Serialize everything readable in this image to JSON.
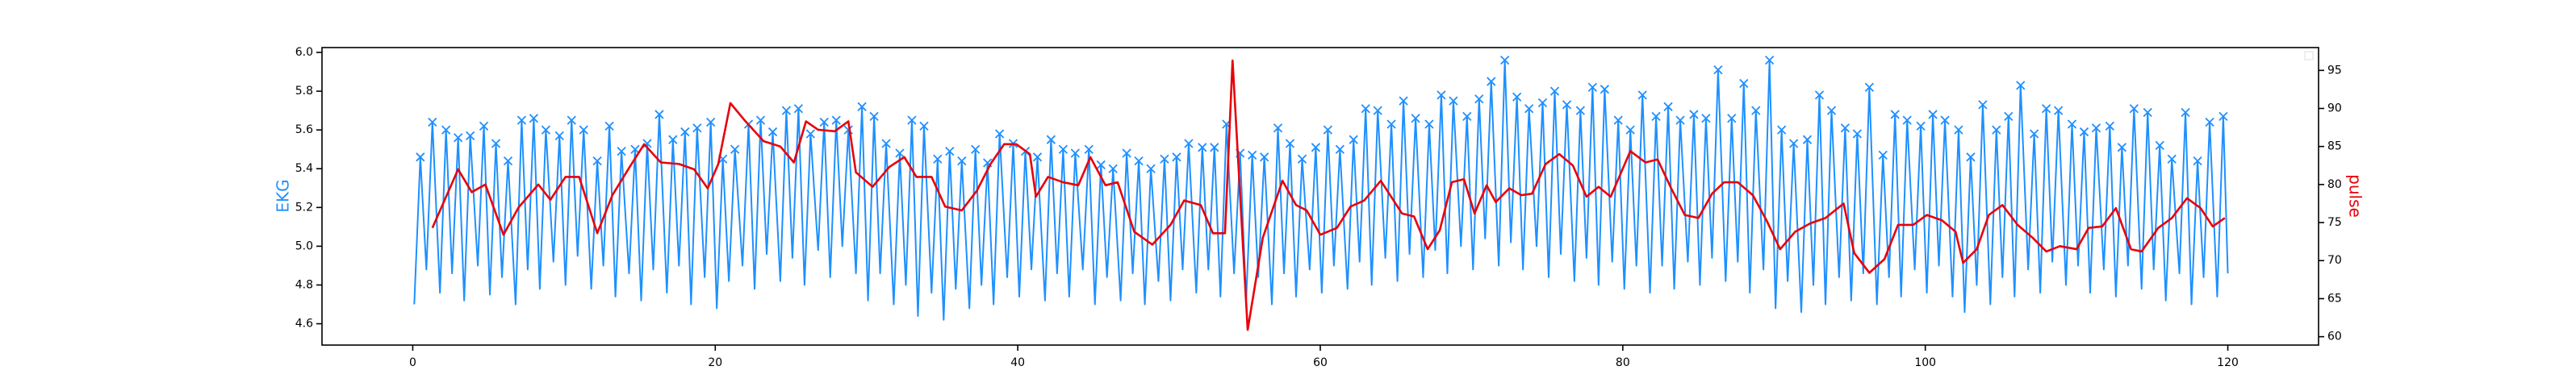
{
  "chart_data": {
    "type": "line",
    "ylabel": "EKG",
    "y2label": "pulse",
    "xlim": [
      -6,
      126
    ],
    "xticks": [
      0,
      20,
      40,
      60,
      80,
      100,
      120
    ],
    "ylim": [
      4.49,
      6.025
    ],
    "yticks": [
      4.6,
      4.8,
      {
        "value": 5.0,
        "label": "5.0"
      },
      5.2,
      5.4,
      5.6,
      5.8,
      {
        "value": 6.0,
        "label": "6.0"
      }
    ],
    "y2lim": [
      58.9,
      98
    ],
    "y2ticks": [
      60,
      65,
      70,
      75,
      80,
      85,
      90,
      95
    ],
    "series": [
      {
        "type": "line",
        "color": "#1e90ff",
        "x": [
          0.1,
          0.5,
          0.9,
          1.3,
          1.8,
          2.2,
          2.6,
          3,
          3.4,
          3.8,
          4.3,
          4.7,
          5.1,
          5.5,
          5.9,
          6.3,
          6.8,
          7.2,
          7.6,
          8,
          8.4,
          8.8,
          9.3,
          9.7,
          10.1,
          10.5,
          10.9,
          11.3,
          11.8,
          12.2,
          12.6,
          13,
          13.4,
          13.8,
          14.3,
          14.7,
          15.1,
          15.5,
          15.9,
          16.3,
          16.8,
          17.2,
          17.6,
          18,
          18.4,
          18.8,
          19.3,
          19.7,
          20.1,
          20.5,
          20.9,
          21.3,
          21.8,
          22.2,
          22.6,
          23,
          23.4,
          23.8,
          24.3,
          24.7,
          25.1,
          25.5,
          25.9,
          26.3,
          26.8,
          27.2,
          27.6,
          28,
          28.4,
          28.8,
          29.3,
          29.7,
          30.1,
          30.5,
          30.9,
          31.3,
          31.8,
          32.2,
          32.6,
          33,
          33.4,
          33.8,
          34.3,
          34.7,
          35.1,
          35.5,
          35.9,
          36.3,
          36.8,
          37.2,
          37.6,
          38,
          38.4,
          38.8,
          39.3,
          39.7,
          40.1,
          40.5,
          40.9,
          41.3,
          41.8,
          42.2,
          42.6,
          43,
          43.4,
          43.8,
          44.3,
          44.7,
          45.1,
          45.5,
          45.9,
          46.3,
          46.8,
          47.2,
          47.6,
          48,
          48.4,
          48.8,
          49.3,
          49.7,
          50.1,
          50.5,
          50.9,
          51.3,
          51.8,
          52.2,
          52.6,
          53,
          53.4,
          53.8,
          54.3,
          54.7,
          55.1,
          55.5,
          55.9,
          56.3,
          56.8,
          57.2,
          57.6,
          58,
          58.4,
          58.8,
          59.3,
          59.7,
          60.1,
          60.5,
          60.9,
          61.3,
          61.8,
          62.2,
          62.6,
          63,
          63.4,
          63.8,
          64.3,
          64.7,
          65.1,
          65.5,
          65.9,
          66.3,
          66.8,
          67.2,
          67.6,
          68,
          68.4,
          68.8,
          69.3,
          69.7,
          70.1,
          70.5,
          70.9,
          71.3,
          71.8,
          72.2,
          72.6,
          73,
          73.4,
          73.8,
          74.3,
          74.7,
          75.1,
          75.5,
          75.9,
          76.3,
          76.8,
          77.2,
          77.6,
          78,
          78.4,
          78.8,
          79.3,
          79.7,
          80.1,
          80.5,
          80.9,
          81.3,
          81.8,
          82.2,
          82.6,
          83,
          83.4,
          83.8,
          84.3,
          84.7,
          85.1,
          85.5,
          85.9,
          86.3,
          86.8,
          87.2,
          87.6,
          88,
          88.4,
          88.8,
          89.3,
          89.7,
          90.1,
          90.5,
          90.9,
          91.3,
          91.8,
          92.2,
          92.6,
          93,
          93.4,
          93.8,
          94.3,
          94.7,
          95.1,
          95.5,
          95.9,
          96.3,
          96.8,
          97.2,
          97.6,
          98,
          98.4,
          98.8,
          99.3,
          99.7,
          100.1,
          100.5,
          100.9,
          101.3,
          101.8,
          102.2,
          102.6,
          103,
          103.4,
          103.8,
          104.3,
          104.7,
          105.1,
          105.5,
          105.9,
          106.3,
          106.8,
          107.2,
          107.6,
          108,
          108.4,
          108.8,
          109.3,
          109.7,
          110.1,
          110.5,
          110.9,
          111.3,
          111.8,
          112.2,
          112.6,
          113,
          113.4,
          113.8,
          114.3,
          114.7,
          115.1,
          115.5,
          115.9,
          116.3,
          116.8,
          117.2,
          117.6,
          118,
          118.4,
          118.8,
          119.3,
          119.7,
          120
        ],
        "values": [
          4.7,
          5.46,
          4.88,
          5.64,
          4.76,
          5.6,
          4.86,
          5.56,
          4.72,
          5.57,
          4.9,
          5.62,
          4.75,
          5.53,
          4.84,
          5.44,
          4.7,
          5.65,
          4.88,
          5.66,
          4.78,
          5.6,
          4.92,
          5.57,
          4.8,
          5.65,
          4.95,
          5.6,
          4.78,
          5.44,
          4.9,
          5.62,
          4.74,
          5.49,
          4.86,
          5.5,
          4.72,
          5.53,
          4.88,
          5.68,
          4.76,
          5.55,
          4.9,
          5.59,
          4.7,
          5.61,
          4.84,
          5.64,
          4.68,
          5.45,
          4.82,
          5.5,
          4.9,
          5.63,
          4.78,
          5.65,
          4.96,
          5.59,
          4.82,
          5.7,
          4.94,
          5.71,
          4.8,
          5.58,
          4.98,
          5.64,
          4.84,
          5.65,
          5.0,
          5.6,
          4.86,
          5.72,
          4.72,
          5.67,
          4.86,
          5.53,
          4.7,
          5.48,
          4.8,
          5.65,
          4.64,
          5.62,
          4.76,
          5.45,
          4.62,
          5.49,
          4.78,
          5.44,
          4.68,
          5.5,
          4.8,
          5.43,
          4.7,
          5.58,
          4.84,
          5.53,
          4.74,
          5.49,
          4.88,
          5.46,
          4.72,
          5.55,
          4.86,
          5.5,
          4.74,
          5.48,
          4.88,
          5.5,
          4.7,
          5.42,
          4.84,
          5.4,
          4.72,
          5.48,
          4.86,
          5.44,
          4.7,
          5.4,
          4.82,
          5.45,
          4.72,
          5.46,
          4.88,
          5.53,
          4.76,
          5.51,
          4.88,
          5.51,
          4.74,
          5.63,
          4.86,
          5.48,
          4.72,
          5.47,
          4.84,
          5.46,
          4.7,
          5.61,
          4.86,
          5.53,
          4.74,
          5.45,
          4.88,
          5.51,
          4.76,
          5.6,
          4.9,
          5.5,
          4.78,
          5.55,
          4.92,
          5.71,
          4.8,
          5.7,
          4.94,
          5.63,
          4.82,
          5.75,
          4.96,
          5.66,
          4.84,
          5.63,
          4.98,
          5.78,
          4.86,
          5.75,
          5.0,
          5.67,
          4.88,
          5.76,
          5.04,
          5.85,
          4.9,
          5.96,
          5.02,
          5.77,
          4.88,
          5.71,
          5.0,
          5.74,
          4.84,
          5.8,
          4.96,
          5.73,
          4.82,
          5.7,
          4.94,
          5.82,
          4.8,
          5.81,
          4.92,
          5.65,
          4.78,
          5.6,
          4.9,
          5.78,
          4.76,
          5.67,
          4.9,
          5.72,
          4.78,
          5.65,
          4.92,
          5.68,
          4.8,
          5.66,
          4.94,
          5.91,
          4.82,
          5.66,
          4.92,
          5.84,
          4.76,
          5.7,
          4.88,
          5.96,
          4.68,
          5.6,
          4.82,
          5.53,
          4.66,
          5.55,
          4.8,
          5.78,
          4.7,
          5.7,
          4.84,
          5.61,
          4.72,
          5.58,
          4.86,
          5.82,
          4.7,
          5.47,
          4.84,
          5.68,
          4.74,
          5.65,
          4.88,
          5.62,
          4.76,
          5.68,
          4.9,
          5.65,
          4.74,
          5.6,
          4.66,
          5.46,
          4.8,
          5.73,
          4.7,
          5.6,
          4.84,
          5.67,
          4.74,
          5.83,
          4.88,
          5.58,
          4.76,
          5.71,
          4.92,
          5.7,
          4.8,
          5.63,
          4.9,
          5.59,
          4.76,
          5.61,
          4.88,
          5.62,
          4.74,
          5.51,
          4.9,
          5.71,
          4.78,
          5.69,
          4.88,
          5.52,
          4.72,
          5.45,
          4.86,
          5.69,
          4.7,
          5.44,
          4.84,
          5.64,
          4.74,
          5.67,
          4.86
        ]
      },
      {
        "type": "scatter",
        "marker": "x",
        "color": "#1e90ff",
        "x": [
          0.5,
          1.3,
          2.2,
          3,
          3.8,
          4.7,
          5.5,
          6.3,
          7.2,
          8,
          8.8,
          9.7,
          10.5,
          11.3,
          12.2,
          13,
          13.8,
          14.7,
          15.5,
          16.3,
          17.2,
          18,
          18.8,
          19.7,
          20.5,
          21.3,
          22.2,
          23,
          23.8,
          24.7,
          25.5,
          26.3,
          27.2,
          28,
          28.8,
          29.7,
          30.5,
          31.3,
          32.2,
          33,
          33.8,
          34.7,
          35.5,
          36.3,
          37.2,
          38,
          38.8,
          39.7,
          40.5,
          41.3,
          42.2,
          43,
          43.8,
          44.7,
          45.5,
          46.3,
          47.2,
          48,
          48.8,
          49.7,
          50.5,
          51.3,
          52.2,
          53,
          53.8,
          54.7,
          55.5,
          56.3,
          57.2,
          58,
          58.8,
          59.7,
          60.5,
          61.3,
          62.2,
          63,
          63.8,
          64.7,
          65.5,
          66.3,
          67.2,
          68,
          68.8,
          69.7,
          70.5,
          71.3,
          72.2,
          73,
          73.8,
          74.7,
          75.5,
          76.3,
          77.2,
          78,
          78.8,
          79.7,
          80.5,
          81.3,
          82.2,
          83,
          83.8,
          84.7,
          85.5,
          86.3,
          87.2,
          88,
          88.8,
          89.7,
          90.5,
          91.3,
          92.2,
          93,
          93.8,
          94.7,
          95.5,
          96.3,
          97.2,
          98,
          98.8,
          99.7,
          100.5,
          101.3,
          102.2,
          103,
          103.8,
          104.7,
          105.5,
          106.3,
          107.2,
          108,
          108.8,
          109.7,
          110.5,
          111.3,
          112.2,
          113,
          113.8,
          114.7,
          115.5,
          116.3,
          117.2,
          118,
          118.8,
          119.7
        ],
        "values": [
          5.46,
          5.64,
          5.6,
          5.56,
          5.57,
          5.62,
          5.53,
          5.44,
          5.65,
          5.66,
          5.6,
          5.57,
          5.65,
          5.6,
          5.44,
          5.62,
          5.49,
          5.5,
          5.53,
          5.68,
          5.55,
          5.59,
          5.61,
          5.64,
          5.45,
          5.5,
          5.63,
          5.65,
          5.59,
          5.7,
          5.71,
          5.58,
          5.64,
          5.65,
          5.6,
          5.72,
          5.67,
          5.53,
          5.48,
          5.65,
          5.62,
          5.45,
          5.49,
          5.44,
          5.5,
          5.43,
          5.58,
          5.53,
          5.49,
          5.46,
          5.55,
          5.5,
          5.48,
          5.5,
          5.42,
          5.4,
          5.48,
          5.44,
          5.4,
          5.45,
          5.46,
          5.53,
          5.51,
          5.51,
          5.63,
          5.48,
          5.47,
          5.46,
          5.61,
          5.53,
          5.45,
          5.51,
          5.6,
          5.5,
          5.55,
          5.71,
          5.7,
          5.63,
          5.75,
          5.66,
          5.63,
          5.78,
          5.75,
          5.67,
          5.76,
          5.85,
          5.96,
          5.77,
          5.71,
          5.74,
          5.8,
          5.73,
          5.7,
          5.82,
          5.81,
          5.65,
          5.6,
          5.78,
          5.67,
          5.72,
          5.65,
          5.68,
          5.66,
          5.91,
          5.66,
          5.84,
          5.7,
          5.96,
          5.6,
          5.53,
          5.55,
          5.78,
          5.7,
          5.61,
          5.58,
          5.82,
          5.47,
          5.68,
          5.65,
          5.62,
          5.68,
          5.65,
          5.6,
          5.46,
          5.73,
          5.6,
          5.67,
          5.83,
          5.58,
          5.71,
          5.7,
          5.63,
          5.59,
          5.61,
          5.62,
          5.51,
          5.71,
          5.69,
          5.52,
          5.45,
          5.69,
          5.44,
          5.64,
          5.67
        ]
      },
      {
        "type": "line",
        "color": "#e8000b",
        "axis": "y2",
        "x": [
          1.3,
          3,
          3.9,
          4.8,
          6,
          7,
          8.3,
          9.1,
          10.1,
          11,
          12.2,
          13.2,
          14.4,
          15.3,
          16.4,
          17.6,
          18.6,
          19.5,
          20.2,
          21,
          22,
          23.2,
          24.3,
          25.2,
          26,
          26.8,
          27.9,
          28.8,
          29.3,
          30.4,
          31.5,
          32.5,
          33.3,
          34.3,
          35.2,
          36.3,
          37.3,
          38.2,
          39.1,
          39.9,
          40.8,
          41.2,
          42,
          43,
          44,
          44.8,
          45.8,
          46.6,
          47.7,
          48.9,
          50.1,
          51,
          52.1,
          52.9,
          53.7,
          54.2,
          55.2,
          56.2,
          57.5,
          58.4,
          59.1,
          60,
          61.1,
          62,
          62.9,
          64,
          65.4,
          66.2,
          67.1,
          67.9,
          68.7,
          69.5,
          70.2,
          71,
          71.6,
          72.5,
          73.3,
          74,
          74.9,
          75.8,
          76.7,
          77.6,
          78.4,
          79.2,
          80.5,
          81.5,
          82.3,
          83.2,
          84.1,
          85,
          85.9,
          86.7,
          87.6,
          88.6,
          89.5,
          90.4,
          91.4,
          92.4,
          93.4,
          94.6,
          95.3,
          96.3,
          97.3,
          98.2,
          99.2,
          100.1,
          101.1,
          102,
          102.5,
          103.4,
          104.2,
          105.1,
          106.1,
          107.1,
          108,
          108.9,
          110,
          110.8,
          111.7,
          112.6,
          113.6,
          114.3,
          115.4,
          116.3,
          117.3,
          118.2,
          119,
          119.8
        ],
        "values": [
          74.3,
          82,
          79,
          80,
          73.4,
          77,
          80,
          78,
          81,
          81,
          73.6,
          78.6,
          82.5,
          85.3,
          82.9,
          82.7,
          82,
          79.5,
          82.7,
          90.7,
          88.3,
          85.7,
          85,
          82.9,
          88.3,
          87.2,
          87,
          88.3,
          81.6,
          79.7,
          82.3,
          83.6,
          81,
          81,
          77.1,
          76.6,
          79.2,
          82.7,
          85.3,
          85.3,
          84,
          78.4,
          81,
          80.3,
          79.9,
          83.6,
          79.9,
          80.3,
          73.8,
          72.1,
          74.7,
          77.9,
          77.3,
          73.6,
          73.6,
          96.3,
          60.9,
          73,
          80.5,
          77.3,
          76.6,
          73.4,
          74.3,
          77.1,
          77.9,
          80.5,
          76.2,
          75.8,
          71.5,
          74,
          80.3,
          80.7,
          76.2,
          79.9,
          77.7,
          79.5,
          78.6,
          78.8,
          82.7,
          84,
          82.5,
          78.4,
          79.7,
          78.4,
          84.4,
          82.9,
          83.3,
          79.5,
          76,
          75.6,
          78.8,
          80.3,
          80.3,
          78.6,
          75.3,
          71.5,
          73.8,
          74.9,
          75.6,
          77.5,
          71,
          68.4,
          70.2,
          74.7,
          74.7,
          76,
          75.3,
          73.8,
          69.7,
          71.5,
          76,
          77.3,
          74.7,
          73,
          71.2,
          71.9,
          71.5,
          74.3,
          74.5,
          76.9,
          71.5,
          71.2,
          74.3,
          75.6,
          78.2,
          76.9,
          74.5,
          75.6
        ]
      }
    ]
  }
}
